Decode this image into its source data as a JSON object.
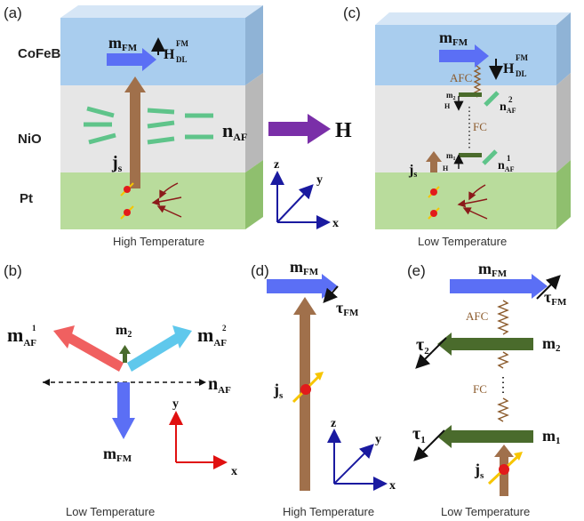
{
  "panels": {
    "a": {
      "label": "(a)",
      "caption": "High Temperature"
    },
    "b": {
      "label": "(b)",
      "caption": "Low Temperature"
    },
    "c": {
      "label": "(c)",
      "caption": "Low Temperature"
    },
    "d": {
      "label": "(d)",
      "caption": "High Temperature"
    },
    "e": {
      "label": "(e)",
      "caption": "Low Temperature"
    }
  },
  "layers": {
    "top": "CoFeB",
    "middle": "NiO",
    "bottom": "Pt"
  },
  "symbols": {
    "m": "m",
    "fm": "FM",
    "af": "AF",
    "dl": "DL",
    "H": "H",
    "n": "n",
    "j": "j",
    "s": "s",
    "tau": "τ",
    "one": "1",
    "two": "2"
  },
  "coupling": {
    "afc": "AFC",
    "fc": "FC"
  },
  "axes": {
    "x": "x",
    "y": "y",
    "z": "z"
  },
  "colors": {
    "cofeb": "#a9cdee",
    "nio": "#e4e4e4",
    "pt": "#b7dc9a",
    "current": "#a0704b",
    "mfm": "#5b6ff5",
    "naf": "#5fc48a",
    "maf1": "#f06060",
    "maf2": "#5fc8ec",
    "m2": "#4a6b2c",
    "field_arrow": "#7a2fa8",
    "axis_red": "#e01010",
    "axis_blue": "#1a1aa0"
  }
}
